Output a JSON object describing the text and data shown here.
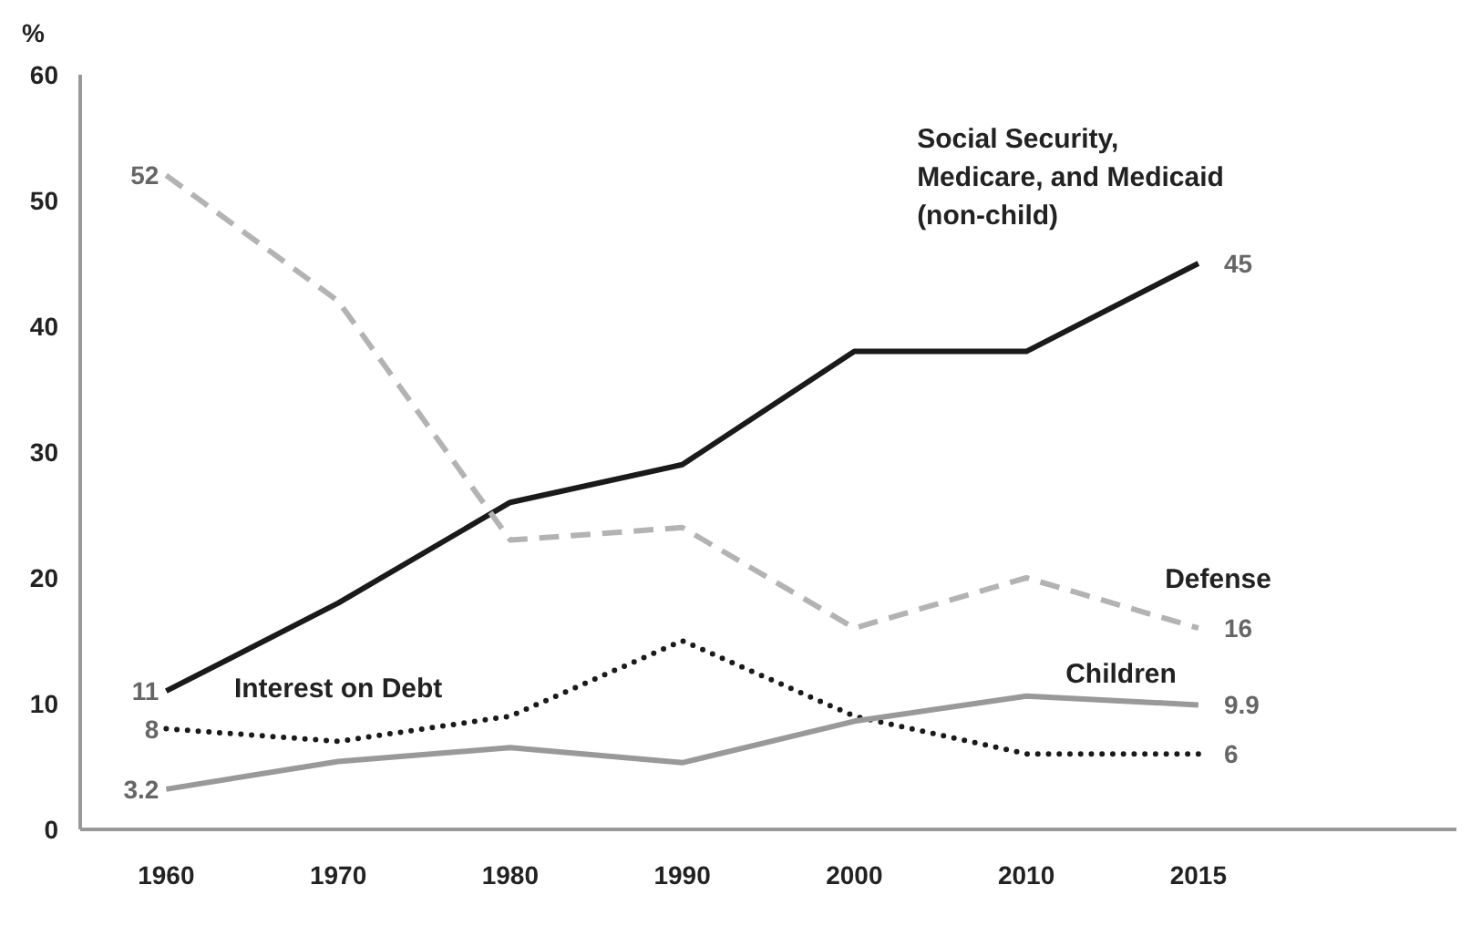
{
  "chart_data": {
    "type": "line",
    "ylabel": "%",
    "categories": [
      "1960",
      "1970",
      "1980",
      "1990",
      "2000",
      "2010",
      "2015",
      null
    ],
    "ylim": [
      0,
      60
    ],
    "yticks": [
      0,
      10,
      20,
      30,
      40,
      50,
      60
    ],
    "grid": false,
    "legend": false,
    "marker": "none",
    "series": [
      {
        "name": "Social Security, Medicare, and Medicaid (non-child)",
        "color": "#1a1a1a",
        "line_style": "solid",
        "values": [
          11,
          18,
          26,
          29,
          38,
          38,
          45,
          null
        ],
        "value_labels": [
          "11",
          null,
          null,
          null,
          null,
          null,
          "45",
          null
        ]
      },
      {
        "name": "Defense",
        "color": "#b3b3b3",
        "line_style": "dashed",
        "values": [
          52,
          42,
          23,
          24,
          16,
          20,
          16,
          null
        ],
        "value_labels": [
          "52",
          null,
          null,
          null,
          null,
          null,
          "16",
          null
        ]
      },
      {
        "name": "Interest on Debt",
        "color": "#1a1a1a",
        "line_style": "dotted",
        "values": [
          8,
          7,
          9,
          15,
          9,
          6,
          6,
          null
        ],
        "value_labels": [
          "8",
          null,
          null,
          null,
          null,
          null,
          "6",
          null
        ]
      },
      {
        "name": "Children",
        "color": "#999999",
        "line_style": "solid",
        "values": [
          3.2,
          5.4,
          6.5,
          5.3,
          8.6,
          10.6,
          9.9,
          null
        ],
        "value_labels": [
          "3.2",
          null,
          null,
          null,
          null,
          null,
          "9.9",
          null
        ]
      }
    ]
  }
}
